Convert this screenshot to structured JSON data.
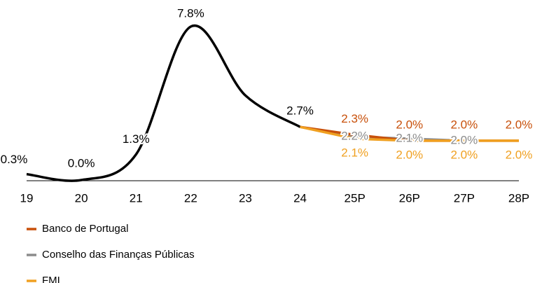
{
  "chart_data": {
    "type": "line",
    "categories": [
      "19",
      "20",
      "21",
      "22",
      "23",
      "24",
      "25P",
      "26P",
      "27P",
      "28P"
    ],
    "series": [
      {
        "color": "#000000",
        "values": [
          0.3,
          0.0,
          1.3,
          7.8,
          4.3,
          2.7,
          null,
          null,
          null,
          null
        ],
        "value_labels": [
          "0.3%",
          "0.0%",
          "1.3%",
          "7.8%",
          null,
          "2.7%",
          null,
          null,
          null,
          null
        ]
      },
      {
        "name": "Banco de Portugal",
        "color": "#c8500a",
        "values": [
          null,
          null,
          null,
          null,
          null,
          2.7,
          2.3,
          2.0,
          2.0,
          2.0
        ],
        "value_labels": [
          null,
          null,
          null,
          null,
          null,
          null,
          "2.3%",
          "2.0%",
          "2.0%",
          "2.0%"
        ]
      },
      {
        "name": "Conselho das Finanças Públicas",
        "color": "#8c8c8c",
        "values": [
          null,
          null,
          null,
          null,
          null,
          2.7,
          2.2,
          2.1,
          2.0,
          null
        ],
        "value_labels": [
          null,
          null,
          null,
          null,
          null,
          null,
          "2.2%",
          "2.1%",
          "2.0%",
          null
        ]
      },
      {
        "name": "FMI",
        "color": "#f0a020",
        "values": [
          null,
          null,
          null,
          null,
          null,
          2.7,
          2.1,
          2.0,
          2.0,
          2.0
        ],
        "value_labels": [
          null,
          null,
          null,
          null,
          null,
          null,
          "2.1%",
          "2.0%",
          "2.0%",
          "2.0%"
        ]
      }
    ]
  }
}
